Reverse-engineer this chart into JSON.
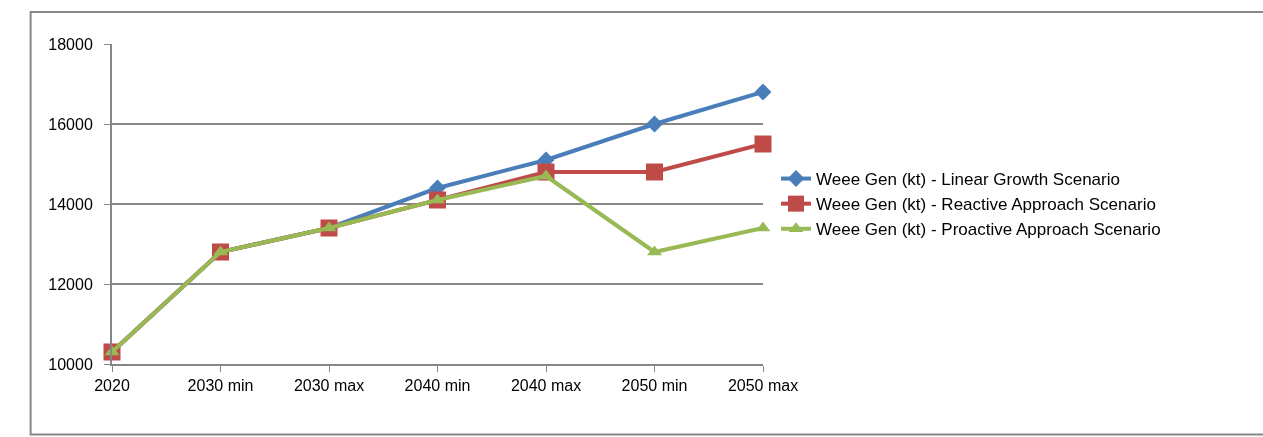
{
  "chart_data": {
    "type": "line",
    "categories": [
      "2020",
      "2030 min",
      "2030 max",
      "2040 min",
      "2040 max",
      "2050 min",
      "2050 max"
    ],
    "series": [
      {
        "name": "Weee Gen (kt) - Linear Growth Scenario",
        "color": "#4a7ebb",
        "marker": "diamond",
        "values": [
          10300,
          12800,
          13400,
          14400,
          15100,
          16000,
          16800
        ]
      },
      {
        "name": "Weee Gen (kt) - Reactive Approach Scenario",
        "color": "#be4b48",
        "marker": "square",
        "values": [
          10300,
          12800,
          13400,
          14100,
          14800,
          14800,
          15500
        ]
      },
      {
        "name": "Weee Gen (kt) - Proactive Approach Scenario",
        "color": "#98b954",
        "marker": "triangle",
        "values": [
          10300,
          12800,
          13400,
          14100,
          14700,
          12800,
          13400
        ]
      }
    ],
    "ylim": [
      10000,
      18000
    ],
    "yticks": [
      10000,
      12000,
      14000,
      16000,
      18000
    ],
    "grid": "y",
    "legend": "right",
    "line_style": "solid"
  }
}
